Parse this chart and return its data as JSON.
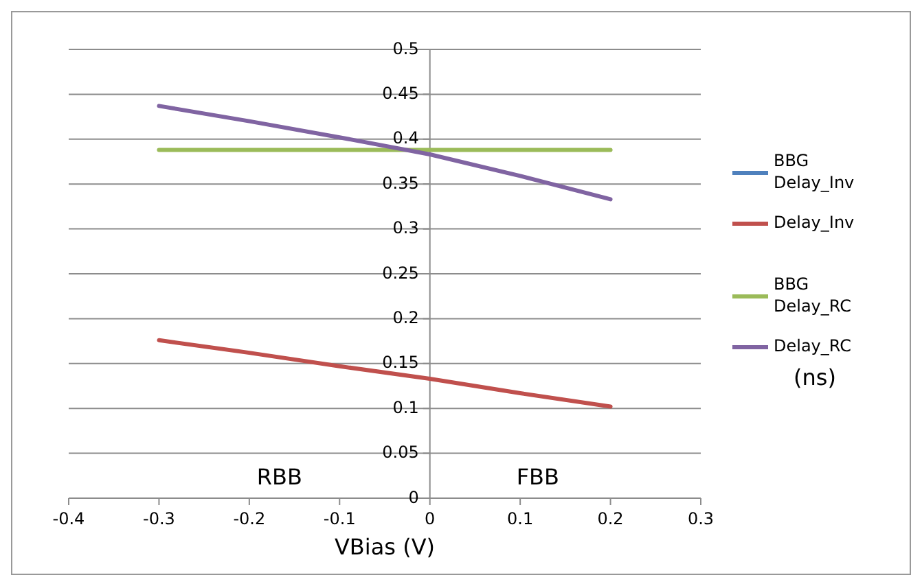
{
  "chart_data": {
    "type": "line",
    "xlabel": "VBias (V)",
    "x": [
      -0.3,
      -0.2,
      -0.1,
      0,
      0.1,
      0.2
    ],
    "series": [
      {
        "name": "BBG Delay_Inv",
        "color": "#4f81bd",
        "values": [
          null,
          null,
          null,
          null,
          null,
          null
        ]
      },
      {
        "name": "Delay_Inv",
        "color": "#c0504d",
        "values": [
          0.176,
          0.162,
          0.147,
          0.133,
          0.117,
          0.102
        ]
      },
      {
        "name": "BBG Delay_RC",
        "color": "#9bbb59",
        "values": [
          0.388,
          0.388,
          0.388,
          0.388,
          0.388,
          0.388
        ]
      },
      {
        "name": "Delay_RC",
        "color": "#8064a2",
        "values": [
          0.437,
          0.42,
          0.402,
          0.383,
          0.359,
          0.333
        ]
      }
    ],
    "xlim": [
      -0.4,
      0.3
    ],
    "xticks": [
      -0.4,
      -0.3,
      -0.2,
      -0.1,
      0,
      0.1,
      0.2,
      0.3
    ],
    "ylim": [
      0,
      0.5
    ],
    "yticks": [
      0,
      0.05,
      0.1,
      0.15,
      0.2,
      0.25,
      0.3,
      0.35,
      0.4,
      0.45,
      0.5
    ],
    "grid": "y",
    "legend": "right",
    "marker": "none",
    "line_style": "solid",
    "annotations": [
      "RBB",
      "FBB",
      "(ns)"
    ]
  }
}
